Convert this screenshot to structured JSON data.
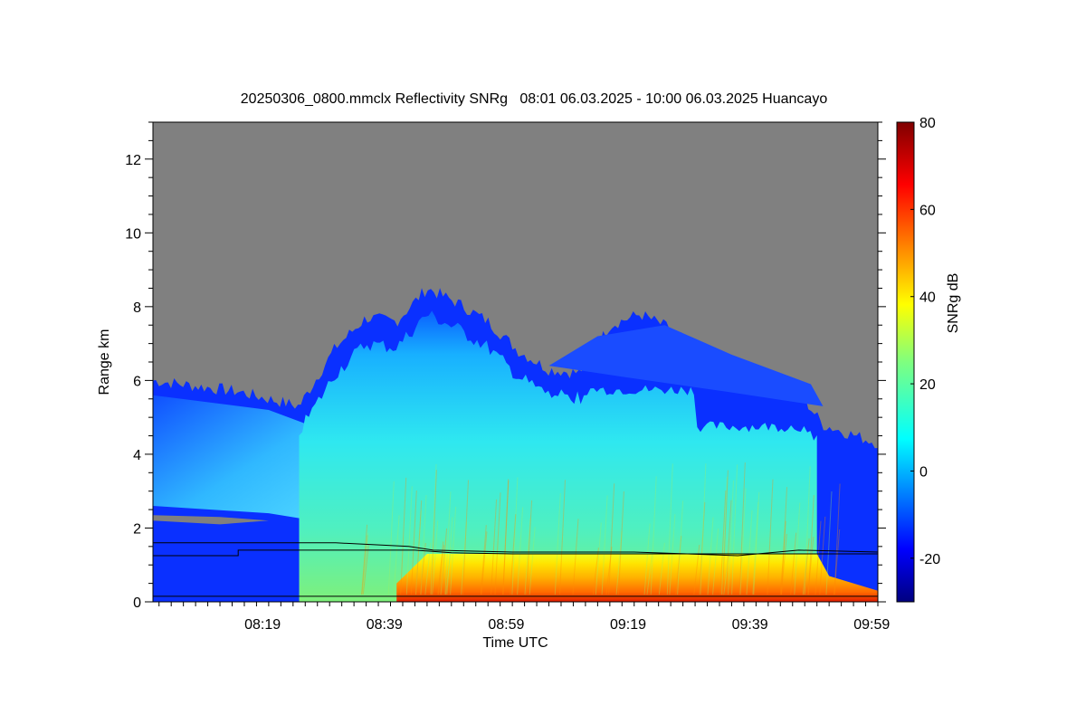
{
  "chart_data": {
    "type": "heatmap",
    "title": "20250306_0800.mmclx Reflectivity SNRg   08:01 06.03.2025 - 10:00 06.03.2025 Huancayo",
    "xlabel": "Time UTC",
    "ylabel": "Range km",
    "colorbar_label": "SNRg dB",
    "x_range": [
      "08:01",
      "10:00"
    ],
    "x_ticks": [
      "08:19",
      "08:39",
      "08:59",
      "09:19",
      "09:39",
      "09:59"
    ],
    "ylim": [
      0,
      13
    ],
    "y_ticks": [
      0,
      2,
      4,
      6,
      8,
      10,
      12
    ],
    "colorbar_range": [
      -30,
      80
    ],
    "colorbar_ticks": [
      -20,
      0,
      20,
      40,
      60,
      80
    ],
    "colormap": "jet",
    "background_color": "#808080",
    "echo_top_km_approx": [
      {
        "time": "08:01",
        "top": 6.0
      },
      {
        "time": "08:15",
        "top": 5.7
      },
      {
        "time": "08:25",
        "top": 5.3
      },
      {
        "time": "08:31",
        "top": 6.9
      },
      {
        "time": "08:36",
        "top": 7.7
      },
      {
        "time": "08:41",
        "top": 7.6
      },
      {
        "time": "08:46",
        "top": 8.5
      },
      {
        "time": "08:51",
        "top": 8.1
      },
      {
        "time": "08:56",
        "top": 7.6
      },
      {
        "time": "09:01",
        "top": 6.8
      },
      {
        "time": "09:06",
        "top": 6.3
      },
      {
        "time": "09:11",
        "top": 6.2
      },
      {
        "time": "09:16",
        "top": 7.5
      },
      {
        "time": "09:21",
        "top": 7.8
      },
      {
        "time": "09:26",
        "top": 7.4
      },
      {
        "time": "09:31",
        "top": 6.7
      },
      {
        "time": "09:36",
        "top": 6.3
      },
      {
        "time": "09:41",
        "top": 6.1
      },
      {
        "time": "09:46",
        "top": 5.9
      },
      {
        "time": "09:51",
        "top": 4.8
      },
      {
        "time": "10:00",
        "top": 4.3
      }
    ],
    "line_upper_km": [
      {
        "time": "08:01",
        "value": 1.6
      },
      {
        "time": "08:31",
        "value": 1.6
      },
      {
        "time": "08:43",
        "value": 1.5
      },
      {
        "time": "08:47",
        "value": 1.4
      },
      {
        "time": "09:00",
        "value": 1.35
      },
      {
        "time": "09:20",
        "value": 1.35
      },
      {
        "time": "09:37",
        "value": 1.25
      },
      {
        "time": "09:47",
        "value": 1.4
      },
      {
        "time": "10:00",
        "value": 1.35
      }
    ],
    "line_lower_km": [
      {
        "time": "08:01",
        "value": 1.25
      },
      {
        "time": "08:15",
        "value": 1.25
      },
      {
        "time": "08:15",
        "value": 1.4
      },
      {
        "time": "08:44",
        "value": 1.4
      },
      {
        "time": "08:50",
        "value": 1.33
      },
      {
        "time": "09:00",
        "value": 1.3
      },
      {
        "time": "09:20",
        "value": 1.3
      },
      {
        "time": "10:00",
        "value": 1.3
      }
    ],
    "line_bottom_km": 0.15
  }
}
